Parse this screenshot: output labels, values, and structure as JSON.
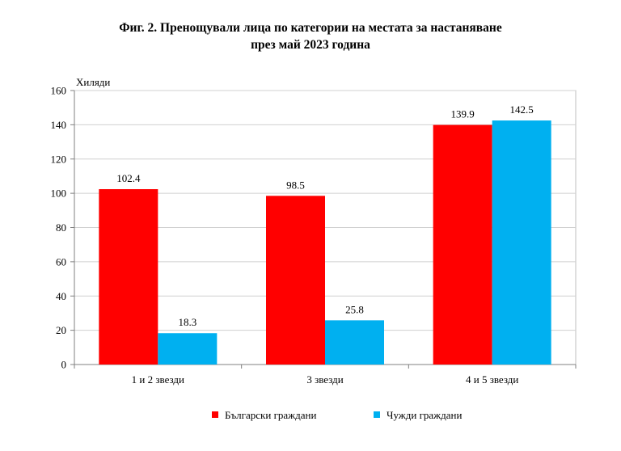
{
  "title_line1": "Фиг. 2. Пренощували лица по категории на местата за настаняване",
  "title_line2": "през май 2023 година",
  "chart_data": {
    "type": "bar",
    "ylabel": "Хиляди",
    "ylim": [
      0,
      160
    ],
    "yticks": [
      "0",
      "20",
      "40",
      "60",
      "80",
      "100",
      "120",
      "140",
      "160"
    ],
    "categories": [
      "1 и 2 звезди",
      "3 звезди",
      "4 и 5 звезди"
    ],
    "series": [
      {
        "name": "Български граждани",
        "color": "#ff0000",
        "values": [
          102.4,
          98.5,
          139.9
        ],
        "labels": [
          "102.4",
          "98.5",
          "139.9"
        ]
      },
      {
        "name": "Чужди граждани",
        "color": "#00b0f0",
        "values": [
          18.3,
          25.8,
          142.5
        ],
        "labels": [
          "18.3",
          "25.8",
          "142.5"
        ]
      }
    ],
    "grid": true,
    "legend_position": "bottom"
  }
}
